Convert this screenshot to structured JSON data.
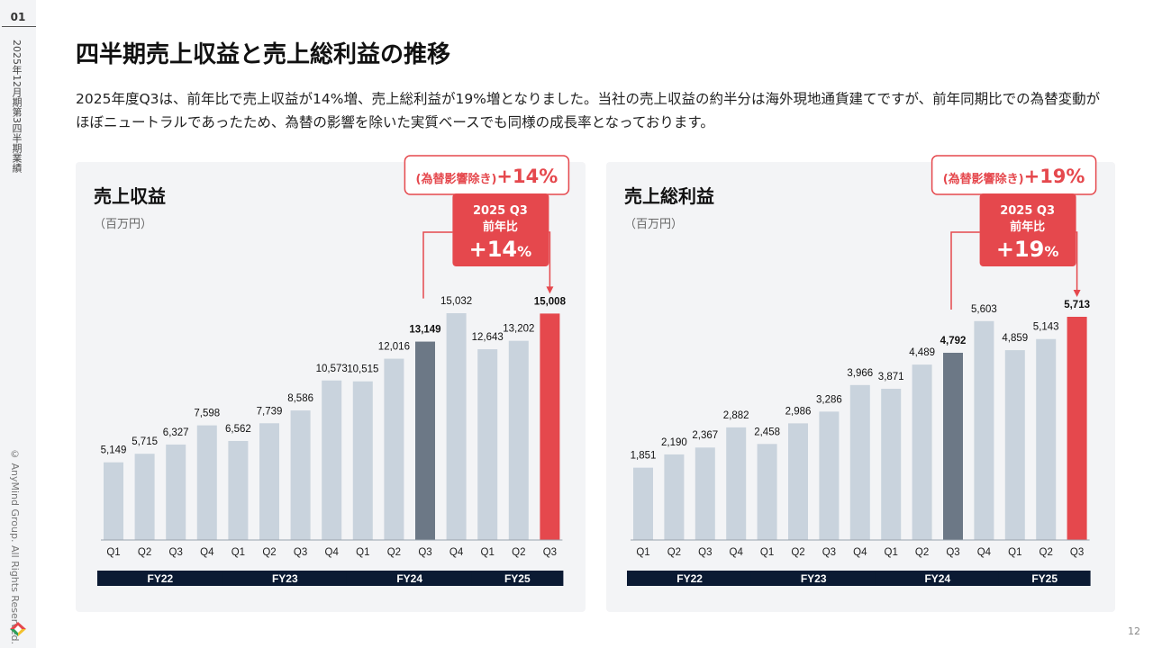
{
  "sidebar": {
    "page_section": "01",
    "doc_title": "2025年12月期第3四半期業績",
    "copyright": "© AnyMind Group. All Rights Reserved."
  },
  "title": "四半期売上収益と売上総利益の推移",
  "description": "2025年度Q3は、前年比で売上収益が14%増、売上総利益が19%増となりました。当社の売上収益の約半分は海外現地通貨建てですが、前年同期比での為替変動がほぼニュートラルであったため、為替の影響を除いた実質ベースでも同様の成長率となっております。",
  "page_number": "12",
  "colors": {
    "bar": "#c9d3dd",
    "highlight_prev": "#6c7886",
    "highlight_current": "#e5484d",
    "fy_band": "#0b1a33"
  },
  "chart_data": [
    {
      "type": "bar",
      "title": "売上収益",
      "unit": "（百万円）",
      "categories": [
        "Q1",
        "Q2",
        "Q3",
        "Q4",
        "Q1",
        "Q2",
        "Q3",
        "Q4",
        "Q1",
        "Q2",
        "Q3",
        "Q4",
        "Q1",
        "Q2",
        "Q3"
      ],
      "groups": [
        {
          "label": "FY22",
          "count": 4
        },
        {
          "label": "FY23",
          "count": 4
        },
        {
          "label": "FY24",
          "count": 4
        },
        {
          "label": "FY25",
          "count": 3
        }
      ],
      "values": [
        5149,
        5715,
        6327,
        7598,
        6562,
        7739,
        8586,
        10573,
        10515,
        12016,
        13149,
        15032,
        12643,
        13202,
        15008
      ],
      "labels": [
        "5,149",
        "5,715",
        "6,327",
        "7,598",
        "6,562",
        "7,739",
        "8,586",
        "10,573",
        "10,515",
        "12,016",
        "13,149",
        "15,032",
        "12,643",
        "13,202",
        "15,008"
      ],
      "highlight_prev": 10,
      "highlight_current": 14,
      "callout": {
        "fx_label": "(為替影響除き)",
        "fx_value": "+14%",
        "line1": "2025 Q3",
        "line2": "前年比",
        "value": "+14",
        "pct": "%"
      }
    },
    {
      "type": "bar",
      "title": "売上総利益",
      "unit": "（百万円）",
      "categories": [
        "Q1",
        "Q2",
        "Q3",
        "Q4",
        "Q1",
        "Q2",
        "Q3",
        "Q4",
        "Q1",
        "Q2",
        "Q3",
        "Q4",
        "Q1",
        "Q2",
        "Q3"
      ],
      "groups": [
        {
          "label": "FY22",
          "count": 4
        },
        {
          "label": "FY23",
          "count": 4
        },
        {
          "label": "FY24",
          "count": 4
        },
        {
          "label": "FY25",
          "count": 3
        }
      ],
      "values": [
        1851,
        2190,
        2367,
        2882,
        2458,
        2986,
        3286,
        3966,
        3871,
        4489,
        4792,
        5603,
        4859,
        5143,
        5713
      ],
      "labels": [
        "1,851",
        "2,190",
        "2,367",
        "2,882",
        "2,458",
        "2,986",
        "3,286",
        "3,966",
        "3,871",
        "4,489",
        "4,792",
        "5,603",
        "4,859",
        "5,143",
        "5,713"
      ],
      "highlight_prev": 10,
      "highlight_current": 14,
      "callout": {
        "fx_label": "(為替影響除き)",
        "fx_value": "+19%",
        "line1": "2025 Q3",
        "line2": "前年比",
        "value": "+19",
        "pct": "%"
      }
    }
  ]
}
